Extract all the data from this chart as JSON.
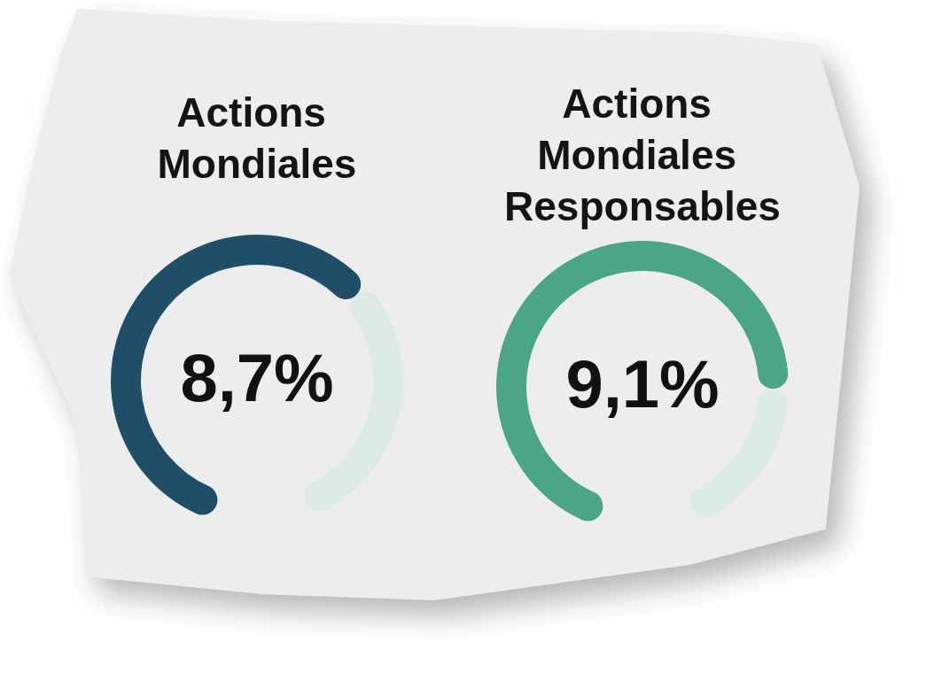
{
  "chart_data": [
    {
      "type": "donut",
      "title": "Actions Mondiales",
      "categories": [
        null,
        null
      ],
      "values": [
        66,
        34
      ],
      "colors": [
        "#1f4f68",
        "#dcece5"
      ],
      "annotations": [
        "8,7%"
      ]
    },
    {
      "type": "donut",
      "title": "Actions Mondiales Responsables",
      "categories": [
        null,
        null
      ],
      "values": [
        79,
        21
      ],
      "colors": [
        "#4aa684",
        "#dcece5"
      ],
      "annotations": [
        "9,1%"
      ]
    }
  ]
}
